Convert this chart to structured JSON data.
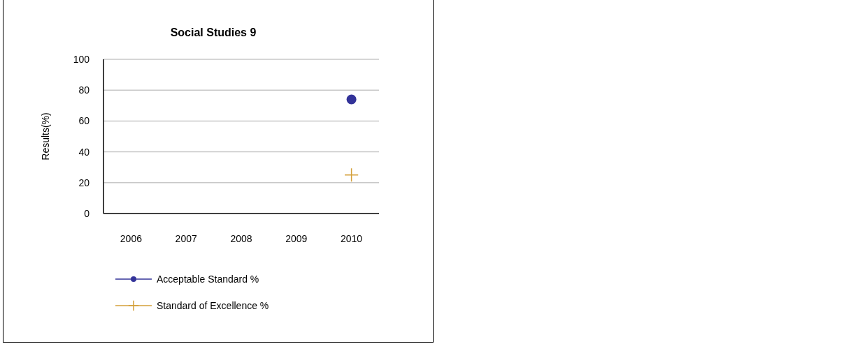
{
  "chart_data": {
    "type": "line",
    "title": "Social Studies 9",
    "ylabel": "Results(%)",
    "categories": [
      "2006",
      "2007",
      "2008",
      "2009",
      "2010"
    ],
    "series": [
      {
        "name": "Acceptable Standard %",
        "color": "#333399",
        "marker": "circle",
        "values": [
          null,
          null,
          null,
          null,
          74
        ]
      },
      {
        "name": "Standard of Excellence %",
        "color": "#d4a03a",
        "marker": "cross",
        "values": [
          null,
          null,
          null,
          null,
          25
        ]
      }
    ],
    "ylim": [
      0,
      100
    ],
    "yticks": [
      0,
      20,
      40,
      60,
      80,
      100
    ],
    "grid": "y",
    "legend": "bottom"
  }
}
